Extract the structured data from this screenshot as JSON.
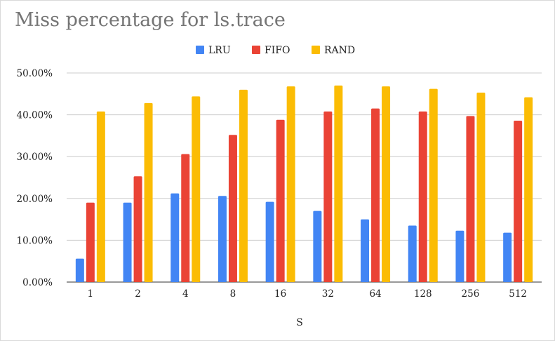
{
  "chart_data": {
    "type": "bar",
    "title": "Miss percentage for ls.trace",
    "xlabel": "S",
    "ylabel": "",
    "ylim": [
      0,
      50
    ],
    "y_ticks": [
      "0.00%",
      "10.00%",
      "20.00%",
      "30.00%",
      "40.00%",
      "50.00%"
    ],
    "categories": [
      "1",
      "2",
      "4",
      "8",
      "16",
      "32",
      "64",
      "128",
      "256",
      "512"
    ],
    "series": [
      {
        "name": "LRU",
        "color": "#4285f4",
        "values": [
          5.6,
          19.0,
          21.2,
          20.6,
          19.2,
          17.0,
          15.0,
          13.5,
          12.3,
          11.8
        ]
      },
      {
        "name": "FIFO",
        "color": "#ea4335",
        "values": [
          19.0,
          25.3,
          30.6,
          35.2,
          38.8,
          40.8,
          41.5,
          40.8,
          39.7,
          38.6
        ]
      },
      {
        "name": "RAND",
        "color": "#fbbc04",
        "values": [
          40.8,
          42.8,
          44.4,
          46.0,
          46.8,
          47.0,
          46.8,
          46.2,
          45.3,
          44.2
        ]
      }
    ],
    "legend_position": "top-center",
    "grid": true
  }
}
